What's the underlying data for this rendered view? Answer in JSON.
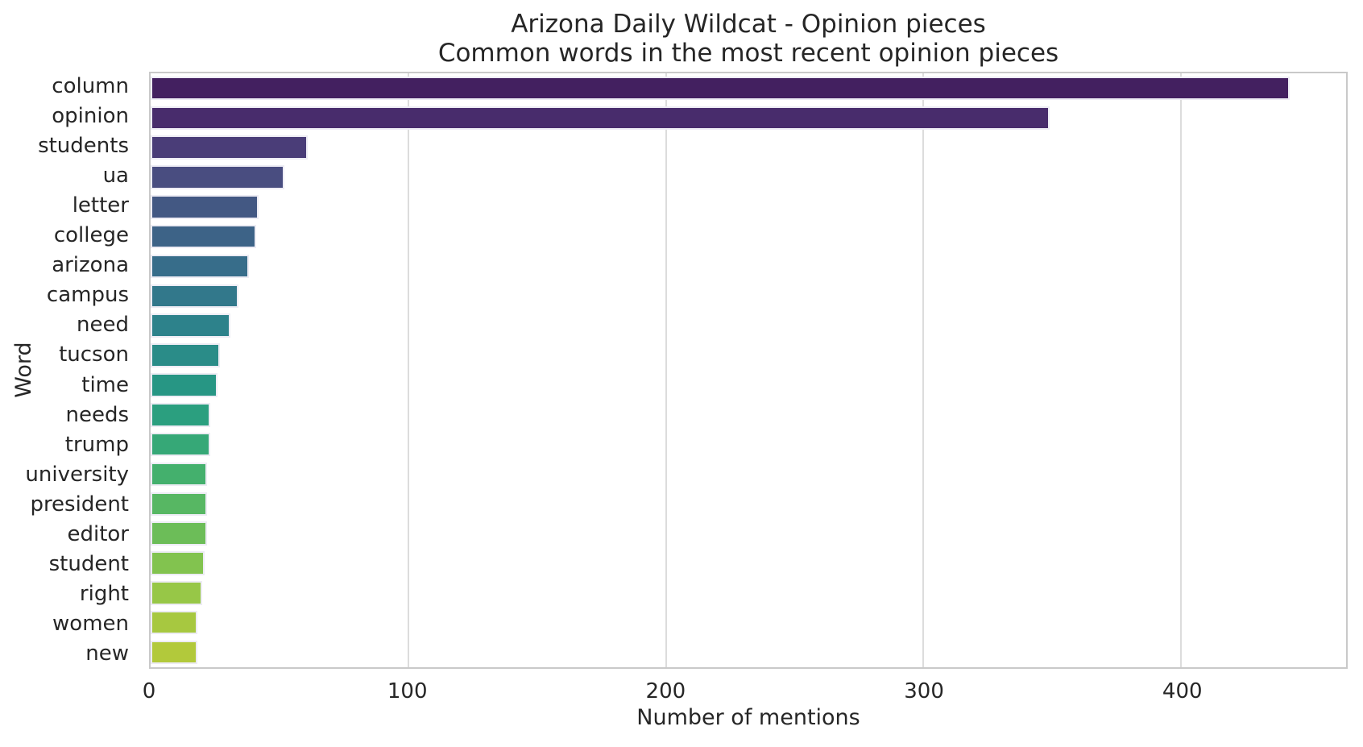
{
  "figure": {
    "title": "Arizona Daily Wildcat - Opinion pieces",
    "subtitle": "Common words in the most recent opinion pieces"
  },
  "chart_data": {
    "type": "bar",
    "orientation": "horizontal",
    "title": "Arizona Daily Wildcat - Opinion pieces",
    "subtitle": "Common words in the most recent opinion pieces",
    "xlabel": "Number of mentions",
    "ylabel": "Word",
    "xlim": [
      0,
      464
    ],
    "x_ticks": [
      0,
      100,
      200,
      300,
      400
    ],
    "grid": true,
    "legend": false,
    "palette": "viridis",
    "categories": [
      "column",
      "opinion",
      "students",
      "ua",
      "letter",
      "college",
      "arizona",
      "campus",
      "need",
      "tucson",
      "time",
      "needs",
      "trump",
      "university",
      "president",
      "editor",
      "student",
      "right",
      "women",
      "new"
    ],
    "values": [
      442,
      349,
      61,
      52,
      42,
      41,
      38,
      34,
      31,
      27,
      26,
      23,
      23,
      22,
      22,
      22,
      21,
      20,
      18,
      18
    ],
    "bar_colors": [
      "#432060",
      "#482c6c",
      "#4a3d78",
      "#494d80",
      "#435883",
      "#3d6387",
      "#376d8a",
      "#32788b",
      "#2d828b",
      "#2a8c88",
      "#279684",
      "#2b9f7f",
      "#36a877",
      "#44b06d",
      "#57b763",
      "#6cbd58",
      "#82c34f",
      "#97c747",
      "#a7c840",
      "#b2c93b"
    ],
    "colors": {
      "grid": "#dcdcdc",
      "spine": "#c9c9c9",
      "text": "#262626",
      "background": "#ffffff"
    }
  }
}
